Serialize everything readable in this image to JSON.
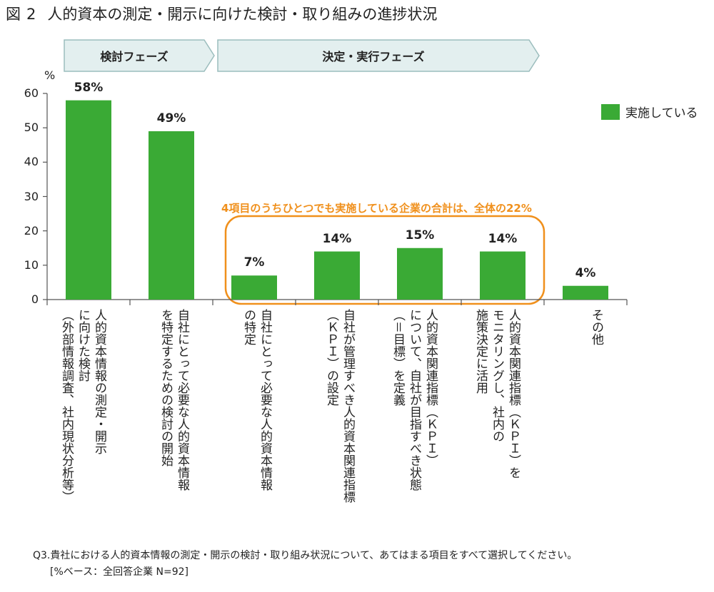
{
  "title": {
    "fig": "図",
    "num": "2",
    "text": "人的資本の測定・開示に向けた検討・取り組みの進捗状況"
  },
  "phases": [
    {
      "label": "検討フェーズ"
    },
    {
      "label": "決定・実行フェーズ"
    }
  ],
  "note": "4項目のうちひとつでも実施している企業の合計は、全体の22%",
  "footnote": {
    "question": "Q3.貴社における人的資本情報の測定・開示の検討・取り組み状況について、あてはまる項目をすべて選択してください。",
    "base": "[%ベース：全回答企業 N=92]"
  },
  "colors": {
    "bar": "#3aaa35",
    "phase_fill": "#e3efef",
    "phase_stroke": "#9bbdbd",
    "note": "#f0901c"
  },
  "chart_data": {
    "type": "bar",
    "unit_label": "%",
    "ylim": [
      0,
      60
    ],
    "yticks": [
      0,
      10,
      20,
      30,
      40,
      50,
      60
    ],
    "legend": "実施している",
    "legend_position": "top-right",
    "grid": false,
    "categories": [
      "人的資本情報の測定・開示\nに向けた検討\n（外部情報調査、社内現状分析等）",
      "自社にとって必要な人的資本情報\nを特定するための検討の開始",
      "自社にとって必要な人的資本情報\nの特定",
      "自社が管理すべき人的資本関連指標\n（ＫＰＩ）の設定",
      "人的資本関連指標（ＫＰＩ）\nについて、自社が目指すべき状態\n（＝目標）を定義",
      "人的資本関連指標（ＫＰＩ）を\nモニタリングし、社内の\n施策決定に活用",
      "その他"
    ],
    "series": [
      {
        "name": "実施している",
        "values": [
          58,
          49,
          7,
          14,
          15,
          14,
          4
        ]
      }
    ],
    "data_labels": [
      "58%",
      "49%",
      "7%",
      "14%",
      "15%",
      "14%",
      "4%"
    ]
  }
}
